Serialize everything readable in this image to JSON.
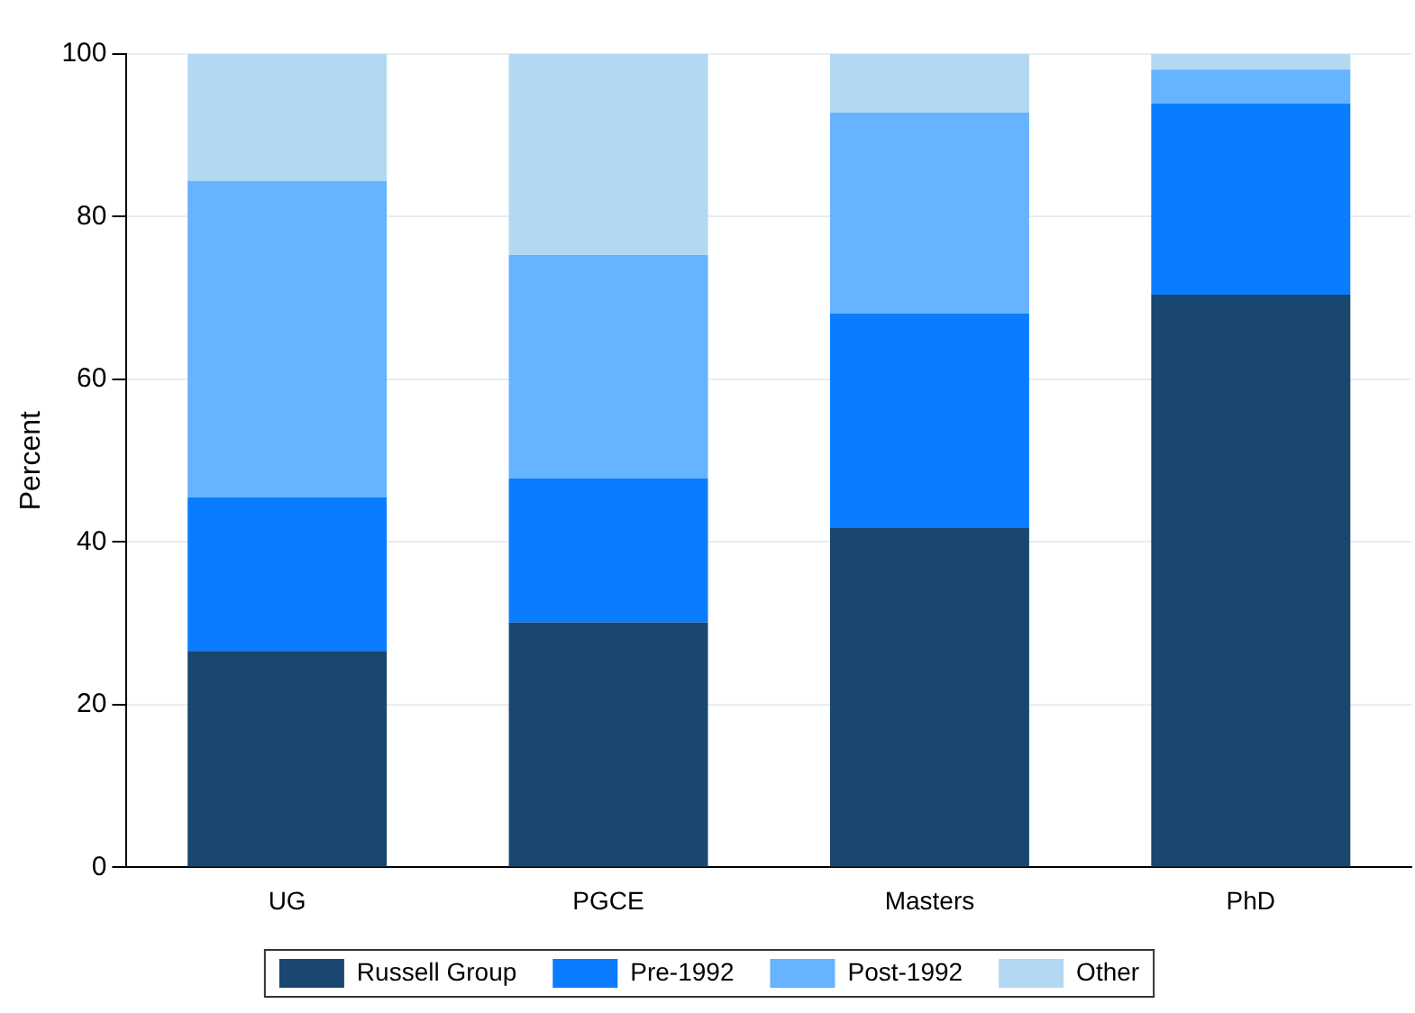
{
  "chart_data": {
    "type": "bar",
    "stacked": true,
    "ylabel": "Percent",
    "categories": [
      "UG",
      "PGCE",
      "Masters",
      "PhD"
    ],
    "series": [
      {
        "name": "Russell Group",
        "color": "#1a476f",
        "values": [
          26.6,
          30.1,
          41.7,
          70.4
        ]
      },
      {
        "name": "Pre-1992",
        "color": "#0a7dff",
        "values": [
          18.9,
          17.7,
          26.4,
          23.5
        ]
      },
      {
        "name": "Post-1992",
        "color": "#66b3ff",
        "values": [
          38.9,
          27.5,
          24.7,
          4.2
        ]
      },
      {
        "name": "Other",
        "color": "#b3d8f2",
        "values": [
          15.6,
          24.7,
          7.2,
          1.9
        ]
      }
    ],
    "ylim": [
      0,
      100
    ],
    "yticks": [
      0,
      20,
      40,
      60,
      80,
      100
    ],
    "grid": "y",
    "legend": "bottom"
  }
}
